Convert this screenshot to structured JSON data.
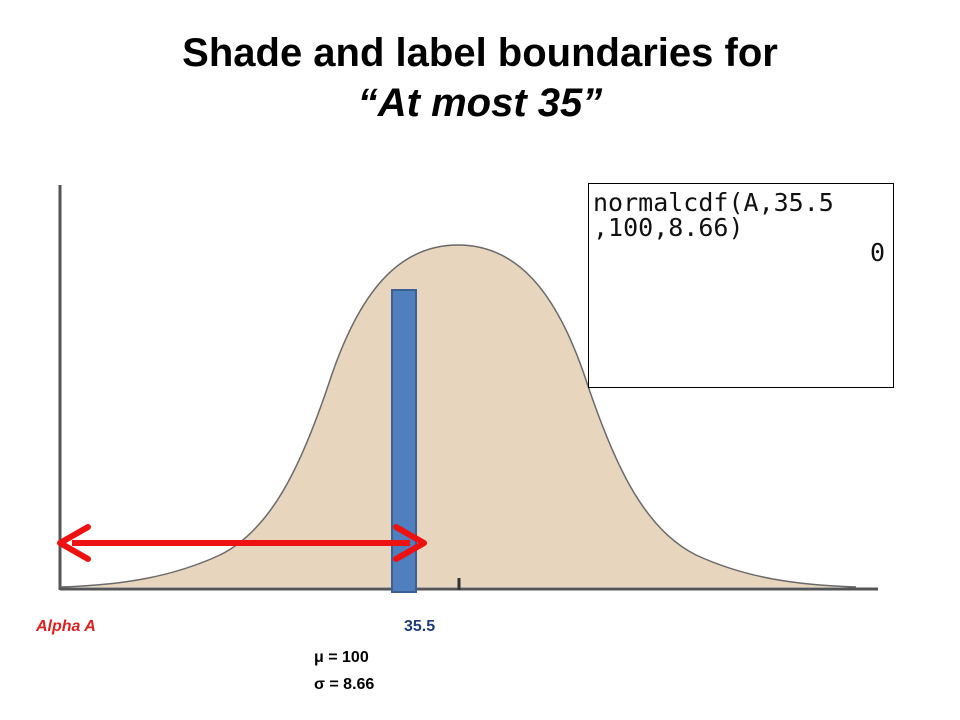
{
  "title": {
    "line1": "Shade and label boundaries for",
    "line2": "“At most 35”"
  },
  "calculator": {
    "line1": "normalcdf(A,35.5",
    "line2": ",100,8.66)",
    "result": "0"
  },
  "labels": {
    "alpha": "Alpha A",
    "boundary": "35.5",
    "mu": "μ = 100",
    "sigma": "σ = 8.66"
  },
  "colors": {
    "curve_fill": "#e8d5be",
    "curve_stroke": "#5a5a5a",
    "boundary_bar": "#4f7fbf",
    "arrow": "#ee1111"
  }
}
